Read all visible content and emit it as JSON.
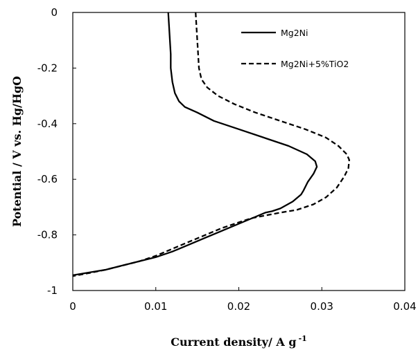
{
  "chart_data": {
    "type": "line",
    "title": "",
    "xlabel": "Current density/ A g",
    "xlabel_superscript": "-1",
    "ylabel": "Potential / V vs. Hg/HgO",
    "xlim": [
      0,
      0.04
    ],
    "ylim": [
      -1,
      0
    ],
    "x_ticks": [
      "0",
      "0.01",
      "0.02",
      "0.03",
      "0.04"
    ],
    "y_ticks": [
      "0",
      "-0.2",
      "-0.4",
      "-0.6",
      "-0.8",
      "-1"
    ],
    "grid": false,
    "legend_position": "top-right",
    "series": [
      {
        "name": "Mg2Ni",
        "line_style": "solid",
        "color": "#000000",
        "points": [
          [
            0.0115,
            0.0
          ],
          [
            0.0116,
            -0.05
          ],
          [
            0.0117,
            -0.1
          ],
          [
            0.0118,
            -0.15
          ],
          [
            0.0118,
            -0.2
          ],
          [
            0.012,
            -0.25
          ],
          [
            0.0123,
            -0.29
          ],
          [
            0.0128,
            -0.32
          ],
          [
            0.0135,
            -0.34
          ],
          [
            0.015,
            -0.36
          ],
          [
            0.017,
            -0.39
          ],
          [
            0.02,
            -0.42
          ],
          [
            0.023,
            -0.45
          ],
          [
            0.026,
            -0.48
          ],
          [
            0.0282,
            -0.51
          ],
          [
            0.0292,
            -0.535
          ],
          [
            0.0294,
            -0.555
          ],
          [
            0.029,
            -0.58
          ],
          [
            0.0283,
            -0.61
          ],
          [
            0.0278,
            -0.64
          ],
          [
            0.0275,
            -0.655
          ],
          [
            0.0265,
            -0.68
          ],
          [
            0.025,
            -0.705
          ],
          [
            0.024,
            -0.715
          ],
          [
            0.0232,
            -0.72
          ],
          [
            0.022,
            -0.735
          ],
          [
            0.02,
            -0.76
          ],
          [
            0.018,
            -0.785
          ],
          [
            0.016,
            -0.81
          ],
          [
            0.014,
            -0.835
          ],
          [
            0.012,
            -0.86
          ],
          [
            0.01,
            -0.88
          ],
          [
            0.008,
            -0.895
          ],
          [
            0.006,
            -0.91
          ],
          [
            0.004,
            -0.925
          ],
          [
            0.002,
            -0.935
          ],
          [
            0.0,
            -0.945
          ]
        ]
      },
      {
        "name": "Mg2Ni+5%TiO2",
        "line_style": "dashed",
        "color": "#000000",
        "points": [
          [
            0.0148,
            0.0
          ],
          [
            0.0149,
            -0.05
          ],
          [
            0.015,
            -0.1
          ],
          [
            0.0151,
            -0.15
          ],
          [
            0.0152,
            -0.2
          ],
          [
            0.0155,
            -0.24
          ],
          [
            0.0162,
            -0.27
          ],
          [
            0.0175,
            -0.3
          ],
          [
            0.0195,
            -0.33
          ],
          [
            0.022,
            -0.36
          ],
          [
            0.025,
            -0.39
          ],
          [
            0.028,
            -0.42
          ],
          [
            0.0305,
            -0.45
          ],
          [
            0.032,
            -0.48
          ],
          [
            0.033,
            -0.51
          ],
          [
            0.0333,
            -0.53
          ],
          [
            0.0332,
            -0.56
          ],
          [
            0.0327,
            -0.59
          ],
          [
            0.0318,
            -0.63
          ],
          [
            0.0305,
            -0.665
          ],
          [
            0.029,
            -0.69
          ],
          [
            0.027,
            -0.71
          ],
          [
            0.025,
            -0.72
          ],
          [
            0.0232,
            -0.73
          ],
          [
            0.0215,
            -0.74
          ],
          [
            0.02,
            -0.755
          ],
          [
            0.018,
            -0.775
          ],
          [
            0.016,
            -0.8
          ],
          [
            0.014,
            -0.825
          ],
          [
            0.012,
            -0.85
          ],
          [
            0.01,
            -0.875
          ],
          [
            0.008,
            -0.895
          ],
          [
            0.006,
            -0.91
          ],
          [
            0.004,
            -0.925
          ],
          [
            0.002,
            -0.937
          ],
          [
            0.0,
            -0.948
          ]
        ]
      }
    ]
  }
}
